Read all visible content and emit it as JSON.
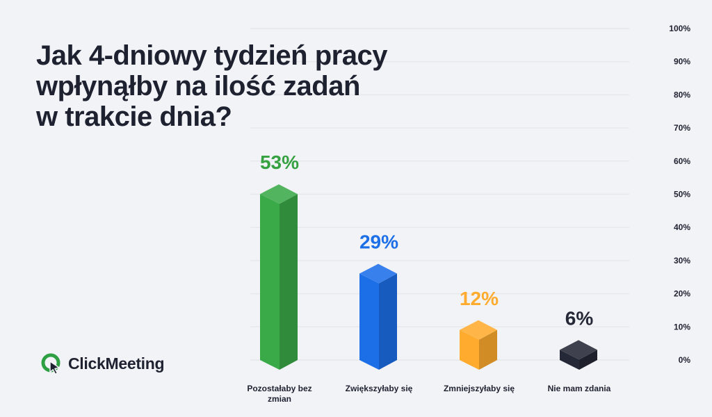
{
  "title_lines": [
    "Jak 4-dniowy tydzień pracy",
    "wpłynąłby na ilość zadań",
    "w trakcie dnia?"
  ],
  "brand": {
    "name": "ClickMeeting",
    "icon": "clickmeeting-logo-icon",
    "color": "#2ea043"
  },
  "chart_data": {
    "type": "bar",
    "title": "Jak 4-dniowy tydzień pracy wpłynąłby na ilość zadań w trakcie dnia?",
    "categories": [
      "Pozostałaby bez zmian",
      "Zwiększyłaby się",
      "Zmniejszyłaby się",
      "Nie mam zdania"
    ],
    "values": [
      53,
      29,
      12,
      6
    ],
    "value_labels": [
      "53%",
      "29%",
      "12%",
      "6%"
    ],
    "unit": "%",
    "ylim": [
      0,
      100
    ],
    "y_ticks": [
      "0%",
      "10%",
      "20%",
      "30%",
      "40%",
      "50%",
      "60%",
      "70%",
      "80%",
      "90%",
      "100%"
    ],
    "y_axis_position": "right",
    "grid": true,
    "colors": [
      "#3aaa48",
      "#1d6fe8",
      "#ffab2e",
      "#252836"
    ],
    "label_colors": [
      "#35a140",
      "#1d6fe8",
      "#ffab2e",
      "#252836"
    ]
  }
}
